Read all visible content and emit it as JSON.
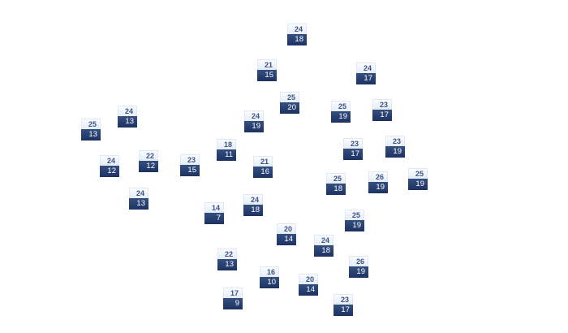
{
  "stations": [
    {
      "high": "24",
      "low": "18"
    },
    {
      "high": "21",
      "low": "15"
    },
    {
      "high": "24",
      "low": "17"
    },
    {
      "high": "25",
      "low": "20"
    },
    {
      "high": "25",
      "low": "19"
    },
    {
      "high": "23",
      "low": "17"
    },
    {
      "high": "24",
      "low": "13"
    },
    {
      "high": "24",
      "low": "19"
    },
    {
      "high": "25",
      "low": "13"
    },
    {
      "high": "18",
      "low": "11"
    },
    {
      "high": "23",
      "low": "17"
    },
    {
      "high": "23",
      "low": "19"
    },
    {
      "high": "24",
      "low": "12"
    },
    {
      "high": "22",
      "low": "12"
    },
    {
      "high": "23",
      "low": "15"
    },
    {
      "high": "21",
      "low": "16"
    },
    {
      "high": "25",
      "low": "18"
    },
    {
      "high": "26",
      "low": "19"
    },
    {
      "high": "25",
      "low": "19"
    },
    {
      "high": "24",
      "low": "13"
    },
    {
      "high": "14",
      "low": "7"
    },
    {
      "high": "24",
      "low": "18"
    },
    {
      "high": "25",
      "low": "19"
    },
    {
      "high": "20",
      "low": "14"
    },
    {
      "high": "24",
      "low": "18"
    },
    {
      "high": "22",
      "low": "13"
    },
    {
      "high": "26",
      "low": "19"
    },
    {
      "high": "16",
      "low": "10"
    },
    {
      "high": "20",
      "low": "14"
    },
    {
      "high": "17",
      "low": "9"
    },
    {
      "high": "23",
      "low": "17"
    }
  ]
}
